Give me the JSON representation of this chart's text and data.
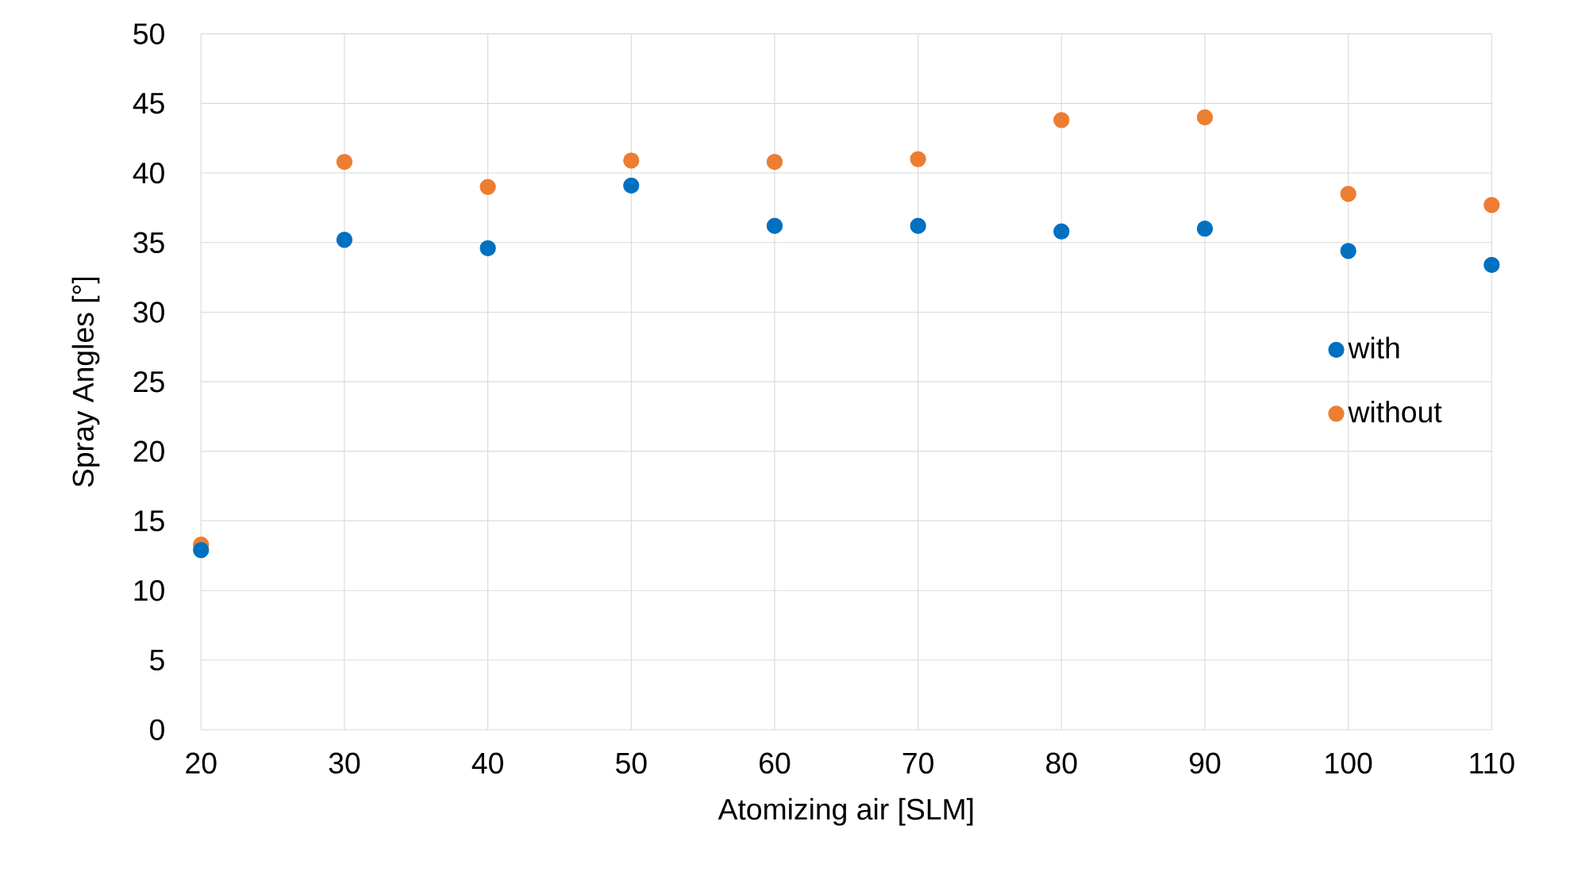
{
  "chart_data": {
    "type": "scatter",
    "xlabel": "Atomizing air [SLM]",
    "ylabel": "Spray Angles [°]",
    "x": [
      20,
      30,
      40,
      50,
      60,
      70,
      80,
      90,
      100,
      110
    ],
    "series": [
      {
        "name": "with",
        "color": "#0070c0",
        "values": [
          12.9,
          35.2,
          34.6,
          39.1,
          36.2,
          36.2,
          35.8,
          36.0,
          34.4,
          33.4
        ]
      },
      {
        "name": "without",
        "color": "#ed7d31",
        "values": [
          13.3,
          40.8,
          39.0,
          40.9,
          40.8,
          41.0,
          43.8,
          44.0,
          38.5,
          37.7
        ]
      }
    ],
    "xlim": [
      20,
      110
    ],
    "ylim": [
      0,
      50
    ],
    "xticks": [
      20,
      30,
      40,
      50,
      60,
      70,
      80,
      90,
      100,
      110
    ],
    "yticks": [
      0,
      5,
      10,
      15,
      20,
      25,
      30,
      35,
      40,
      45,
      50
    ],
    "grid": true,
    "legend": "right",
    "marker": "circle"
  }
}
